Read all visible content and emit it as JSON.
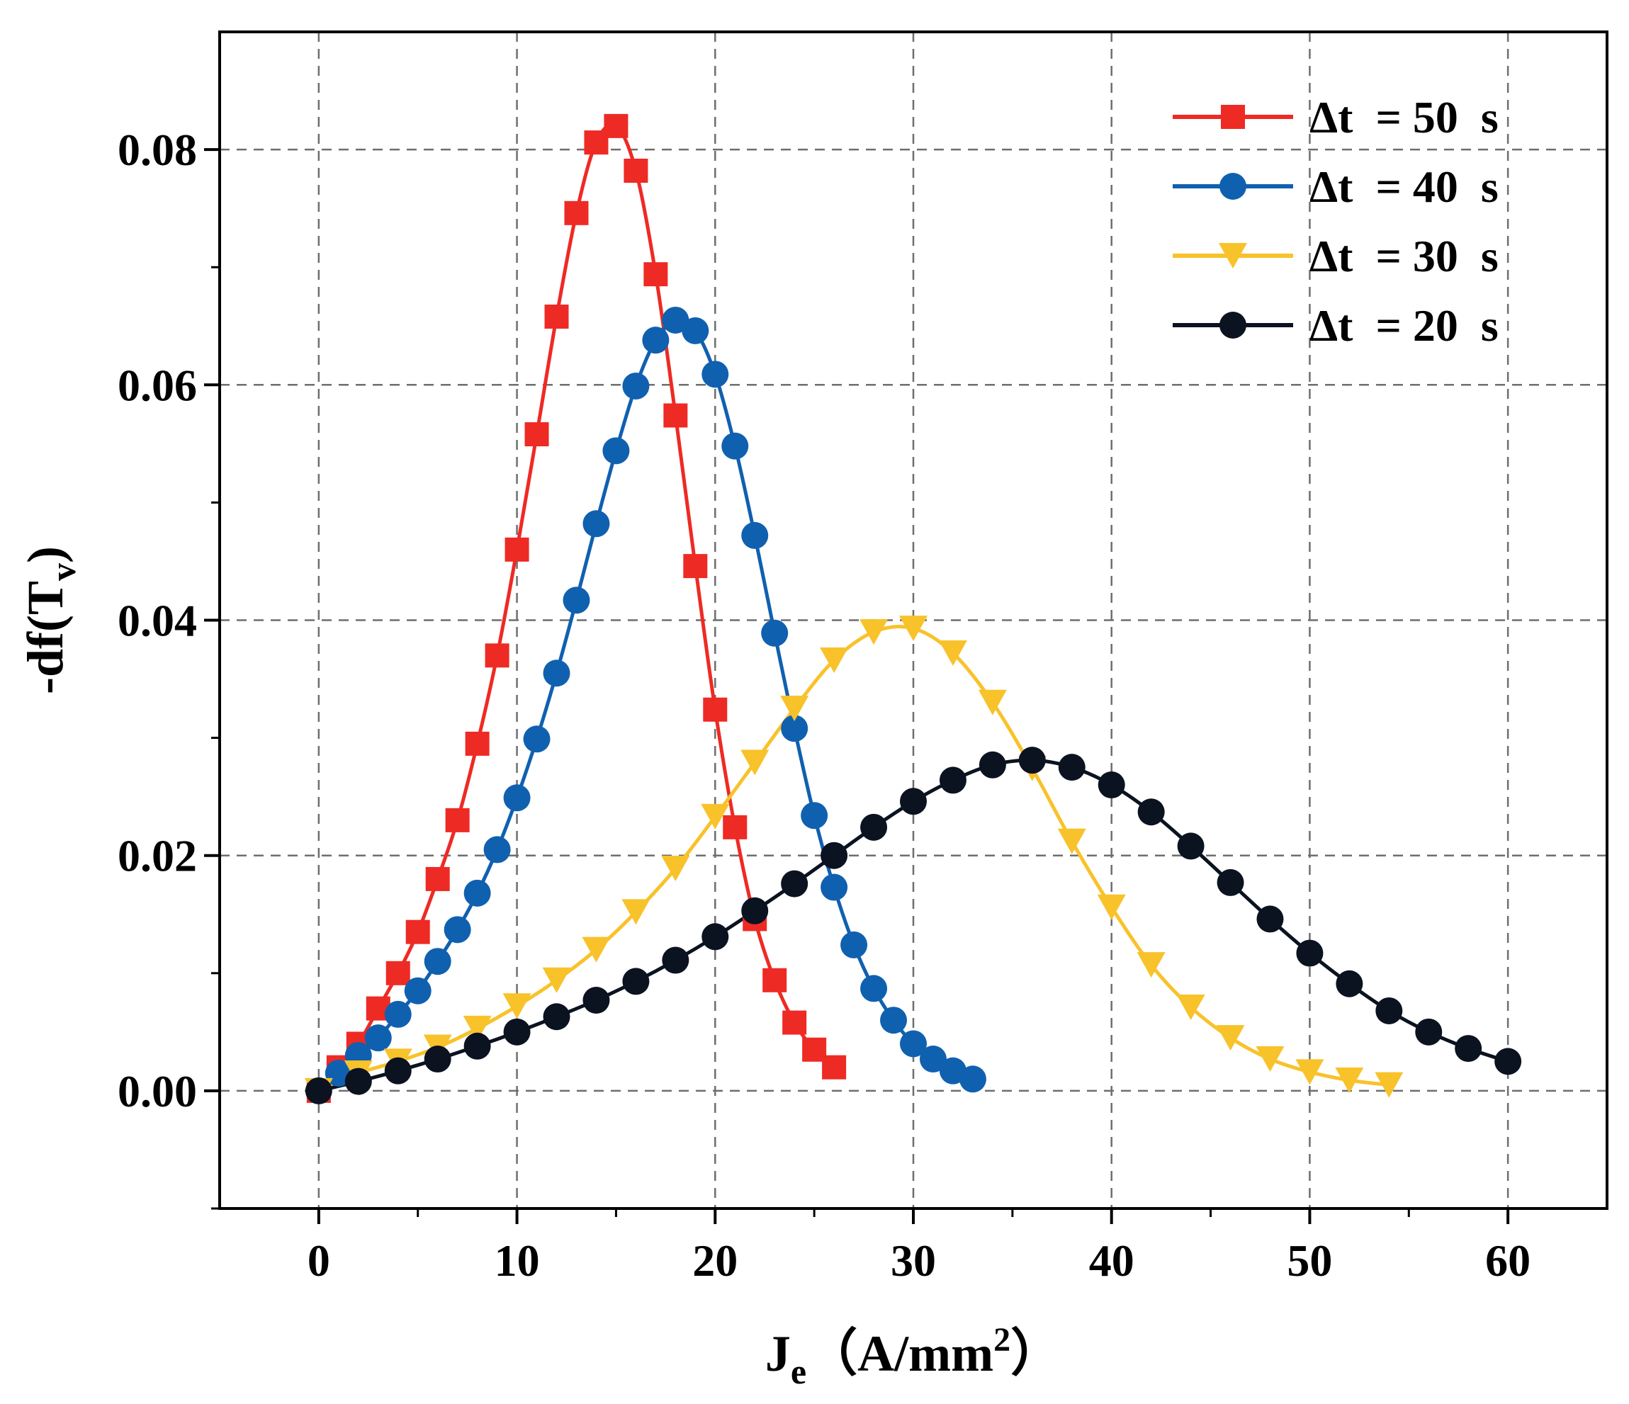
{
  "chart_data": {
    "type": "line",
    "title": "",
    "xlabel": {
      "main": "J",
      "sub": "e",
      "unit_open": "（A/mm",
      "unit_sup": "2",
      "unit_close": "）"
    },
    "ylabel": {
      "main": "-df(T",
      "sub": "v",
      "close": ")"
    },
    "xlim": [
      -5,
      65
    ],
    "ylim": [
      -0.01,
      0.09
    ],
    "xticks": [
      0,
      10,
      20,
      30,
      40,
      50,
      60
    ],
    "xtick_labels": [
      "0",
      "10",
      "20",
      "30",
      "40",
      "50",
      "60"
    ],
    "yticks": [
      0.0,
      0.02,
      0.04,
      0.06,
      0.08
    ],
    "ytick_labels": [
      "0.00",
      "0.02",
      "0.04",
      "0.06",
      "0.08"
    ],
    "grid": true,
    "legend_position": "top-right",
    "series": [
      {
        "name": "Δt  = 50  s",
        "marker": "square",
        "color": "#ee2a24",
        "x": [
          0,
          1,
          2,
          3,
          4,
          5,
          6,
          7,
          8,
          9,
          10,
          11,
          12,
          13,
          14,
          15,
          16,
          17,
          18,
          19,
          20,
          21,
          22,
          23,
          24,
          25,
          26
        ],
        "y": [
          0.0,
          0.002,
          0.004,
          0.007,
          0.01,
          0.0135,
          0.018,
          0.023,
          0.0295,
          0.037,
          0.046,
          0.0558,
          0.0658,
          0.0746,
          0.0806,
          0.082,
          0.0782,
          0.0694,
          0.0574,
          0.0446,
          0.0324,
          0.0224,
          0.0146,
          0.0094,
          0.0058,
          0.0035,
          0.002
        ]
      },
      {
        "name": "Δt  = 40  s",
        "marker": "circle",
        "color": "#1060b0",
        "x": [
          1,
          2,
          3,
          4,
          5,
          6,
          7,
          8,
          9,
          10,
          11,
          12,
          13,
          14,
          15,
          16,
          17,
          18,
          19,
          20,
          21,
          22,
          23,
          24,
          25,
          26,
          27,
          28,
          29,
          30,
          31,
          32,
          33
        ],
        "y": [
          0.0015,
          0.003,
          0.0045,
          0.0065,
          0.0085,
          0.011,
          0.0137,
          0.0168,
          0.0205,
          0.0249,
          0.0299,
          0.0355,
          0.0417,
          0.0482,
          0.0544,
          0.0599,
          0.0638,
          0.0655,
          0.0646,
          0.0609,
          0.0548,
          0.0472,
          0.0389,
          0.0308,
          0.0234,
          0.0173,
          0.0124,
          0.0087,
          0.006,
          0.004,
          0.0027,
          0.0017,
          0.001
        ]
      },
      {
        "name": "Δt  = 30  s",
        "marker": "triangle-down",
        "color": "#f8c22a",
        "x": [
          0,
          2,
          4,
          6,
          8,
          10,
          12,
          14,
          16,
          18,
          20,
          22,
          24,
          26,
          28,
          30,
          32,
          34,
          36,
          38,
          40,
          42,
          44,
          46,
          48,
          50,
          52,
          54
        ],
        "y": [
          0.0,
          0.0015,
          0.0025,
          0.0037,
          0.0053,
          0.0072,
          0.0094,
          0.012,
          0.0152,
          0.0189,
          0.0233,
          0.0279,
          0.0325,
          0.0366,
          0.039,
          0.0393,
          0.0372,
          0.033,
          0.0274,
          0.0212,
          0.0156,
          0.0107,
          0.0071,
          0.0045,
          0.0027,
          0.0016,
          0.0009,
          0.0005
        ]
      },
      {
        "name": "Δt  = 20  s",
        "marker": "circle",
        "color": "#0b1220",
        "x": [
          0,
          2,
          4,
          6,
          8,
          10,
          12,
          14,
          16,
          18,
          20,
          22,
          24,
          26,
          28,
          30,
          32,
          34,
          36,
          38,
          40,
          42,
          44,
          46,
          48,
          50,
          52,
          54,
          56,
          58,
          60
        ],
        "y": [
          0.0,
          0.0008,
          0.0017,
          0.0027,
          0.0038,
          0.005,
          0.0063,
          0.0077,
          0.0093,
          0.0111,
          0.0131,
          0.0153,
          0.0176,
          0.02,
          0.0224,
          0.0246,
          0.0264,
          0.0277,
          0.0281,
          0.0275,
          0.026,
          0.0237,
          0.0208,
          0.0177,
          0.0146,
          0.0117,
          0.0091,
          0.0068,
          0.005,
          0.0036,
          0.0025
        ]
      }
    ]
  }
}
